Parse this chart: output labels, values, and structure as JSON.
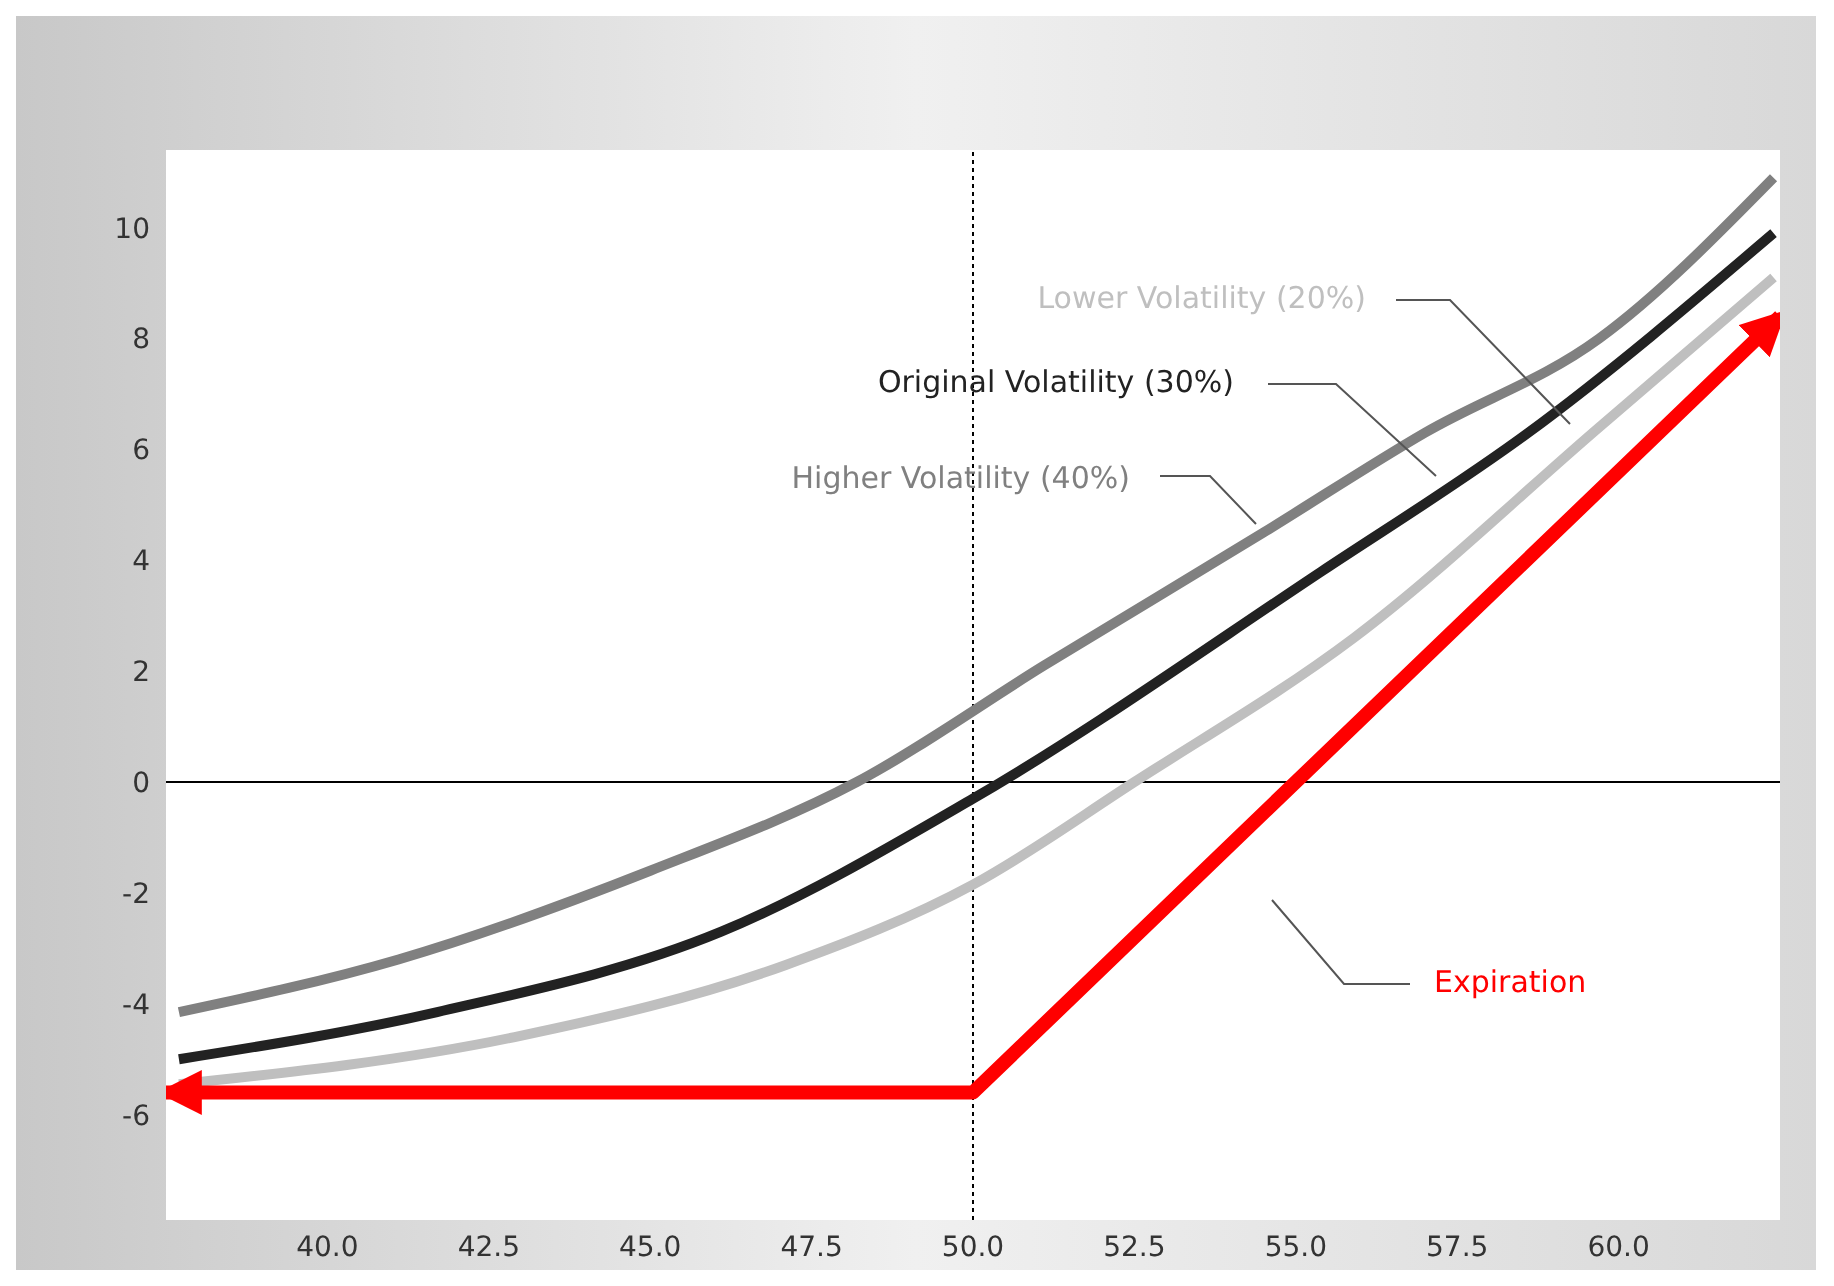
{
  "chart_data": {
    "type": "line",
    "xlim": [
      37.5,
      62.5
    ],
    "xticks": [
      {
        "value": 40,
        "label": "40.0"
      },
      {
        "value": 42.5,
        "label": "42.5"
      },
      {
        "value": 45,
        "label": "45.0"
      },
      {
        "value": 47.5,
        "label": "47.5"
      },
      {
        "value": 50,
        "label": "50.0"
      },
      {
        "value": 52.5,
        "label": "52.5"
      },
      {
        "value": 55,
        "label": "55.0"
      },
      {
        "value": 57.5,
        "label": "57.5"
      },
      {
        "value": 60,
        "label": "60.0"
      }
    ],
    "ylim": [
      -7.9,
      11.4
    ],
    "yticks": [
      -6,
      -4,
      -2,
      0,
      2,
      4,
      6,
      8,
      10
    ],
    "grid": false,
    "marker": "none",
    "ref_lines": [
      {
        "axis": "y",
        "value": 0,
        "color": "#000000",
        "line_style": "solid"
      },
      {
        "axis": "x",
        "value": 50,
        "color": "#000000",
        "line_style": "dotted"
      }
    ],
    "series": [
      {
        "name": "Higher Volatility (40%)",
        "color": "#808080",
        "x": [
          37.7,
          41.1,
          45.0,
          48.2,
          51.1,
          54.5,
          57.0,
          59.7,
          62.4
        ],
        "values": [
          -4.15,
          -3.2,
          -1.6,
          0,
          2.1,
          4.5,
          6.3,
          8.0,
          10.9
        ]
      },
      {
        "name": "Original Volatility (30%)",
        "color": "#222222",
        "x": [
          37.7,
          41.7,
          46.1,
          50.0,
          55.4,
          58.6,
          62.4
        ],
        "values": [
          -5.0,
          -4.15,
          -2.7,
          -0.3,
          3.8,
          6.3,
          9.9
        ]
      },
      {
        "name": "Lower Volatility (20%)",
        "color": "#bfbfbf",
        "x": [
          37.7,
          42.9,
          47.1,
          50.0,
          52.5,
          55.9,
          59.7,
          62.4
        ],
        "values": [
          -5.45,
          -4.6,
          -3.3,
          -1.85,
          0,
          2.6,
          6.4,
          9.1
        ]
      },
      {
        "name": "Expiration",
        "color": "#ff0000",
        "x": [
          37.5,
          50.0,
          62.5
        ],
        "values": [
          -5.6,
          -5.6,
          8.4
        ]
      }
    ]
  }
}
